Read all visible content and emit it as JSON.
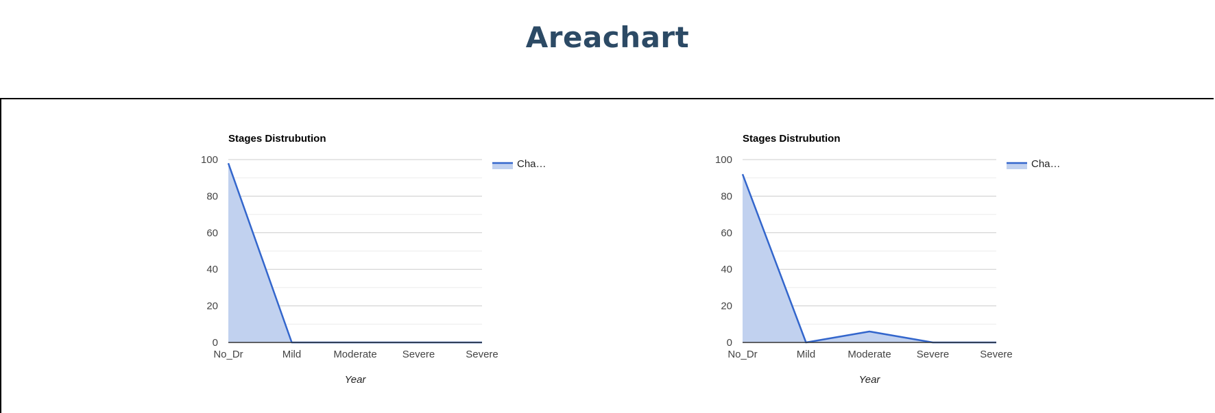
{
  "page": {
    "title": "Areachart"
  },
  "colors": {
    "series": "#3366cc",
    "fill": "#c1d1ef",
    "grid_major": "#cccccc",
    "grid_minor": "#ebebeb",
    "axis": "#333333"
  },
  "chart_data": [
    {
      "type": "area",
      "title": "Stages Distrubution",
      "categories": [
        "No_Dr",
        "Mild",
        "Moderate",
        "Severe",
        "Severe"
      ],
      "series": [
        {
          "name": "Cha…",
          "values": [
            98,
            0,
            0,
            0,
            0
          ]
        }
      ],
      "xlabel": "Year",
      "ylabel": "",
      "ylim": [
        0,
        100
      ],
      "yticks": [
        "0",
        "20",
        "40",
        "60",
        "80",
        "100"
      ],
      "grid": true,
      "legend": "right"
    },
    {
      "type": "area",
      "title": "Stages Distrubution",
      "categories": [
        "No_Dr",
        "Mild",
        "Moderate",
        "Severe",
        "Severe"
      ],
      "series": [
        {
          "name": "Cha…",
          "values": [
            92,
            0,
            6,
            0,
            0
          ]
        }
      ],
      "xlabel": "Year",
      "ylabel": "",
      "ylim": [
        0,
        100
      ],
      "yticks": [
        "0",
        "20",
        "40",
        "60",
        "80",
        "100"
      ],
      "grid": true,
      "legend": "right"
    }
  ]
}
